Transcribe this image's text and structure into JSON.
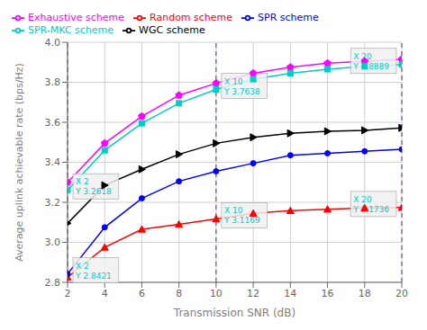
{
  "chart_data": {
    "type": "line",
    "xlabel": "Transmission SNR (dB)",
    "ylabel": "Average uplink achievable rate (bps/Hz)",
    "x": [
      2,
      4,
      6,
      8,
      10,
      12,
      14,
      16,
      18,
      20
    ],
    "series": [
      {
        "name": "Random scheme",
        "color": "#ff0000",
        "marker": "triangle-up",
        "values": [
          2.825,
          2.975,
          3.065,
          3.09,
          3.1169,
          3.145,
          3.158,
          3.165,
          3.172,
          3.1736
        ]
      },
      {
        "name": "SPR scheme",
        "color": "#0000ff",
        "marker": "circle",
        "values": [
          2.8421,
          3.075,
          3.22,
          3.305,
          3.355,
          3.395,
          3.435,
          3.445,
          3.455,
          3.465
        ]
      },
      {
        "name": "WGC scheme",
        "color": "#000000",
        "marker": "triangle-right",
        "values": [
          3.095,
          3.285,
          3.365,
          3.44,
          3.495,
          3.525,
          3.545,
          3.555,
          3.56,
          3.572
        ]
      },
      {
        "name": "Exhaustive scheme",
        "color": "#ff00ff",
        "marker": "pentagon",
        "values": [
          3.3,
          3.495,
          3.63,
          3.735,
          3.795,
          3.845,
          3.875,
          3.895,
          3.905,
          3.915
        ]
      },
      {
        "name": "SPR-MKC scheme",
        "color": "#00cccc",
        "marker": "square",
        "values": [
          3.2618,
          3.46,
          3.595,
          3.695,
          3.7638,
          3.815,
          3.845,
          3.865,
          3.88,
          3.8889
        ]
      }
    ],
    "xlim": [
      2,
      20
    ],
    "ylim": [
      2.8,
      4.0
    ],
    "xticks": [
      2,
      4,
      6,
      8,
      10,
      12,
      14,
      16,
      18,
      20
    ],
    "yticks": [
      2.8,
      {
        "value": 3.0,
        "label": "3.0"
      },
      3.2,
      3.4,
      3.6,
      3.8,
      {
        "value": 4.0,
        "label": "4.0"
      }
    ],
    "grid": true,
    "legend": "upper left",
    "vlines": [
      {
        "x": 2,
        "color": "#6b2d8b",
        "line_style": "dashed"
      },
      {
        "x": 10,
        "color": "#6b2d8b",
        "line_style": "dashed"
      },
      {
        "x": 20,
        "color": "#6b2d8b",
        "line_style": "dashed"
      }
    ],
    "annotations": [
      {
        "text": "X 2\nY 3.2618",
        "x": 2,
        "y": 3.2618,
        "color": "#00cccc"
      },
      {
        "text": "X 2\nY 2.8421",
        "x": 2,
        "y": 2.8421,
        "color": "#00cccc"
      },
      {
        "text": "X 10\nY 3.7638",
        "x": 10,
        "y": 3.7638,
        "color": "#00cccc"
      },
      {
        "text": "X 10\nY 3.1169",
        "x": 10,
        "y": 3.1169,
        "color": "#00cccc"
      },
      {
        "text": "X 20\nY 3.8889",
        "x": 20,
        "y": 3.8889,
        "color": "#00cccc"
      },
      {
        "text": "X 20\nY 3.1736",
        "x": 20,
        "y": 3.1736,
        "color": "#00cccc"
      }
    ]
  }
}
